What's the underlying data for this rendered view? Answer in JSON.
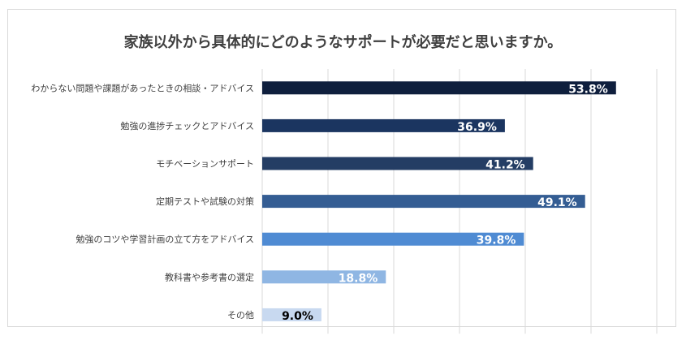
{
  "chart_data": {
    "type": "bar",
    "orientation": "horizontal",
    "title": "家族以外から具体的にどのようなサポートが必要だと思いますか。",
    "categories": [
      "わからない問題や課題があったときの相談・アドバイス",
      "勉強の進捗チェックとアドバイス",
      "モチベーションサポート",
      "定期テストや試験の対策",
      "勉強のコツや学習計画の立て方をアドバイス",
      "教科書や参考書の選定",
      "その他"
    ],
    "values": [
      53.8,
      36.9,
      41.2,
      49.1,
      39.8,
      18.8,
      9.0
    ],
    "value_labels": [
      "53.8%",
      "36.9%",
      "41.2%",
      "49.1%",
      "39.8%",
      "18.8%",
      "9.0%"
    ],
    "colors": [
      "#0f1f3d",
      "#1b3560",
      "#243d64",
      "#345d93",
      "#4f8bd3",
      "#8fb6e3",
      "#c8d9f0"
    ],
    "label_colors": [
      "#ffffff",
      "#ffffff",
      "#ffffff",
      "#ffffff",
      "#ffffff",
      "#ffffff",
      "#000000"
    ],
    "xlim": [
      0,
      60
    ],
    "grid": true,
    "legend": "none"
  }
}
